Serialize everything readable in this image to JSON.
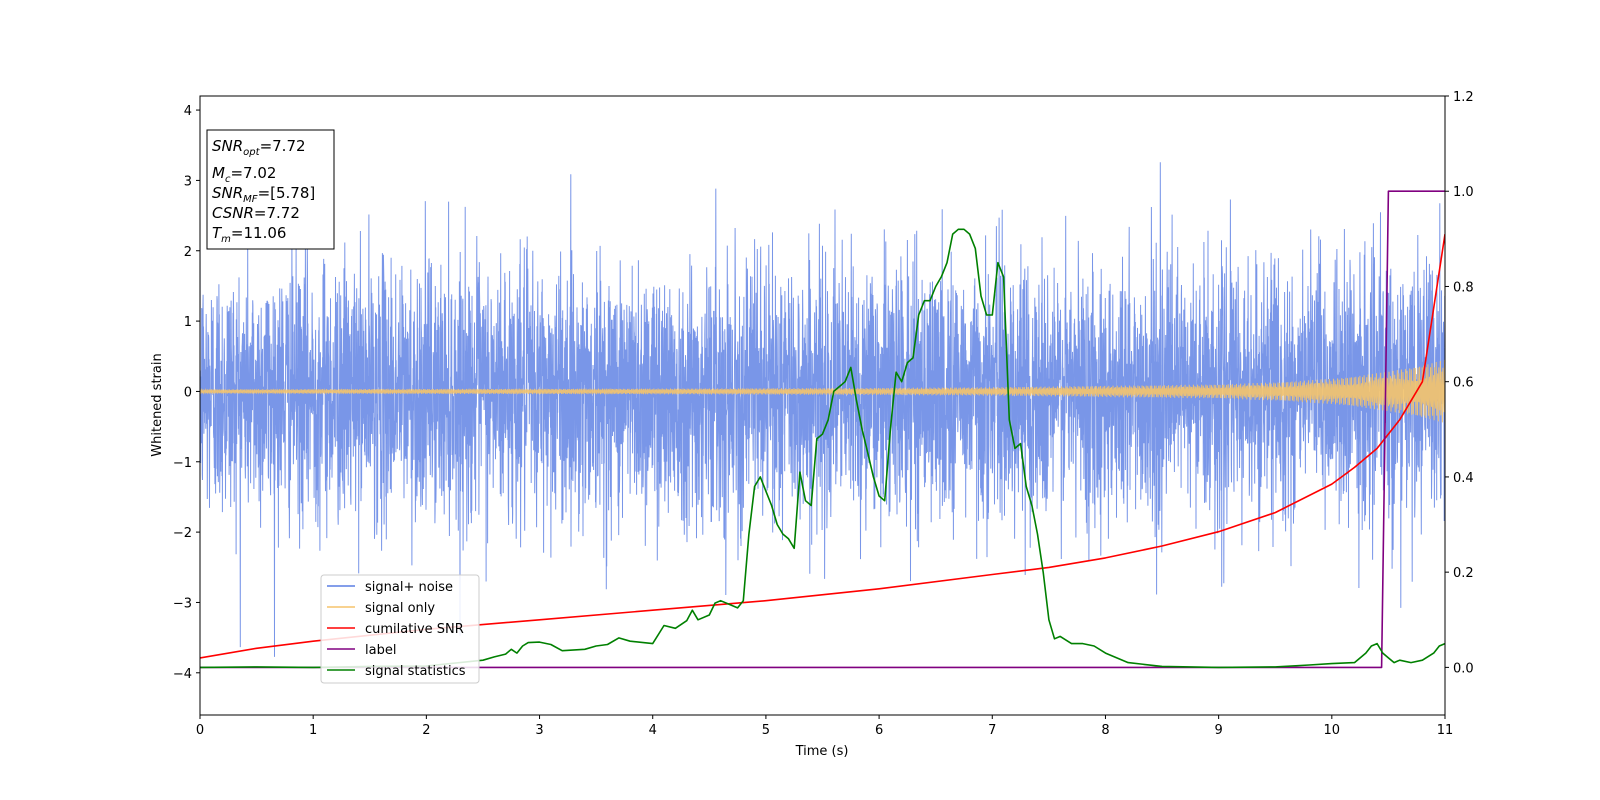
{
  "chart_data": {
    "type": "line",
    "xlabel": "Time (s)",
    "ylabel": "Whitened strain",
    "xlim": [
      0,
      11
    ],
    "ylim": [
      -4.6,
      4.2
    ],
    "y2lim": [
      -0.1,
      1.2
    ],
    "x_ticks": [
      "0",
      "1",
      "2",
      "3",
      "4",
      "5",
      "6",
      "7",
      "8",
      "9",
      "10",
      "11"
    ],
    "y_ticks": [
      "−4",
      "−3",
      "−2",
      "−1",
      "0",
      "1",
      "2",
      "3",
      "4"
    ],
    "y2_ticks": [
      "0.0",
      "0.2",
      "0.4",
      "0.6",
      "0.8",
      "1.0",
      "1.2"
    ],
    "grid": false,
    "legend_position": "lower-left",
    "info_box": {
      "snr_opt": {
        "base": "SNR",
        "sub": "opt",
        "value": "=7.72"
      },
      "mc": {
        "base": "M",
        "sub": "c",
        "value": "=7.02"
      },
      "snr_mf": {
        "base": "SNR",
        "sub": "MF",
        "value": "=[5.78]"
      },
      "csnr": {
        "base": "CSNR",
        "value": "=7.72"
      },
      "tm": {
        "base": "T",
        "sub": "m",
        "value": "=11.06"
      }
    },
    "series": [
      {
        "name": "signal+ noise",
        "axis": "left",
        "color": "#5b7fe3",
        "envelope_sigma": 0.9,
        "peak_range": [
          -4.15,
          3.8
        ]
      },
      {
        "name": "signal only",
        "axis": "left",
        "color": "#f5c46b",
        "x": [
          0,
          2,
          4,
          6,
          7,
          8,
          9,
          9.5,
          10,
          10.5,
          11
        ],
        "amplitude": [
          0.03,
          0.035,
          0.04,
          0.05,
          0.06,
          0.08,
          0.1,
          0.13,
          0.18,
          0.28,
          0.45
        ]
      },
      {
        "name": "cumilative SNR",
        "axis": "right",
        "color": "#ff0000",
        "x": [
          0,
          0.5,
          1,
          2,
          3,
          4,
          5,
          6,
          7,
          7.5,
          8,
          8.5,
          9,
          9.5,
          10,
          10.2,
          10.4,
          10.6,
          10.8,
          11
        ],
        "values": [
          0.02,
          0.04,
          0.055,
          0.08,
          0.1,
          0.12,
          0.14,
          0.165,
          0.195,
          0.21,
          0.23,
          0.255,
          0.285,
          0.325,
          0.385,
          0.42,
          0.46,
          0.52,
          0.6,
          0.91
        ]
      },
      {
        "name": "label",
        "axis": "right",
        "color": "#800080",
        "x": [
          0,
          10.44,
          10.5,
          11
        ],
        "values": [
          0,
          0,
          1,
          1
        ]
      },
      {
        "name": "signal statistics",
        "axis": "right",
        "color": "#008000",
        "x": [
          0,
          0.5,
          1,
          1.5,
          2,
          2.5,
          2.6,
          2.7,
          2.75,
          2.8,
          2.85,
          2.9,
          3.0,
          3.1,
          3.2,
          3.4,
          3.5,
          3.6,
          3.7,
          3.8,
          4.0,
          4.1,
          4.2,
          4.3,
          4.35,
          4.4,
          4.5,
          4.55,
          4.6,
          4.7,
          4.75,
          4.8,
          4.85,
          4.9,
          4.95,
          5.0,
          5.05,
          5.1,
          5.15,
          5.2,
          5.25,
          5.3,
          5.35,
          5.4,
          5.45,
          5.5,
          5.55,
          5.6,
          5.65,
          5.7,
          5.75,
          5.8,
          5.85,
          5.9,
          5.95,
          6.0,
          6.05,
          6.1,
          6.15,
          6.2,
          6.25,
          6.3,
          6.35,
          6.4,
          6.45,
          6.5,
          6.55,
          6.6,
          6.65,
          6.7,
          6.75,
          6.8,
          6.85,
          6.9,
          6.95,
          7.0,
          7.05,
          7.1,
          7.15,
          7.2,
          7.25,
          7.3,
          7.35,
          7.4,
          7.45,
          7.5,
          7.55,
          7.6,
          7.7,
          7.8,
          7.9,
          8.0,
          8.2,
          8.5,
          9.0,
          9.5,
          9.8,
          10.0,
          10.2,
          10.3,
          10.35,
          10.4,
          10.45,
          10.5,
          10.55,
          10.6,
          10.7,
          10.8,
          10.9,
          10.95,
          11.0
        ],
        "values": [
          0.0,
          0.001,
          0.0,
          0.002,
          0.003,
          0.015,
          0.022,
          0.028,
          0.038,
          0.03,
          0.045,
          0.052,
          0.053,
          0.048,
          0.035,
          0.038,
          0.045,
          0.048,
          0.062,
          0.055,
          0.05,
          0.088,
          0.082,
          0.098,
          0.12,
          0.1,
          0.11,
          0.135,
          0.14,
          0.13,
          0.125,
          0.14,
          0.28,
          0.38,
          0.4,
          0.37,
          0.34,
          0.3,
          0.28,
          0.27,
          0.25,
          0.41,
          0.35,
          0.34,
          0.48,
          0.49,
          0.52,
          0.58,
          0.59,
          0.6,
          0.63,
          0.56,
          0.5,
          0.45,
          0.4,
          0.36,
          0.35,
          0.5,
          0.62,
          0.6,
          0.64,
          0.65,
          0.74,
          0.77,
          0.77,
          0.8,
          0.82,
          0.85,
          0.91,
          0.92,
          0.92,
          0.91,
          0.88,
          0.78,
          0.74,
          0.74,
          0.85,
          0.82,
          0.52,
          0.46,
          0.47,
          0.38,
          0.34,
          0.28,
          0.2,
          0.1,
          0.06,
          0.065,
          0.05,
          0.05,
          0.045,
          0.03,
          0.01,
          0.002,
          0.0,
          0.001,
          0.005,
          0.008,
          0.01,
          0.03,
          0.045,
          0.05,
          0.03,
          0.02,
          0.01,
          0.015,
          0.01,
          0.015,
          0.03,
          0.045,
          0.05
        ]
      }
    ]
  }
}
